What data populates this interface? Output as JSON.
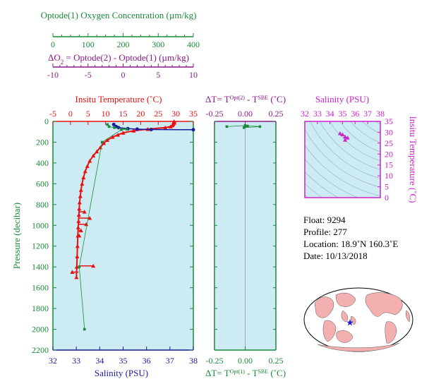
{
  "colors": {
    "oxygen": "#1a8a3a",
    "delta_o2": "#8b1a8b",
    "temperature": "#e81010",
    "salinity": "#1a1aa0",
    "pressure": "#1a8a3a",
    "theta_s": "#cc22cc",
    "plot_bg": "#cdebf3",
    "land": "#f4b0b0",
    "float_marker": "#1a1ad0"
  },
  "axes": {
    "oxygen": {
      "title": "Optode(1) Oxygen Concentration (µm/kg)",
      "range": [
        0,
        400
      ],
      "ticks": [
        "0",
        "100",
        "200",
        "300",
        "400"
      ]
    },
    "delta_o2": {
      "title_prefix": "ΔO",
      "title_sub": "2",
      "title_rest": " = Optode(2) - Optode(1)   (µm/kg)",
      "range": [
        -10,
        10
      ],
      "ticks": [
        "-10",
        "-5",
        "0",
        "5",
        "10"
      ]
    },
    "temperature": {
      "title": "Insitu Temperature (˚C)",
      "range": [
        -5,
        35
      ],
      "ticks": [
        "-5",
        "0",
        "5",
        "10",
        "15",
        "20",
        "25",
        "30",
        "35"
      ]
    },
    "salinity": {
      "title": "Salinity (PSU)",
      "range": [
        32,
        38
      ],
      "ticks": [
        "32",
        "33",
        "34",
        "35",
        "36",
        "37",
        "38"
      ]
    },
    "pressure": {
      "title": "Pressure (decibar)",
      "range": [
        0,
        2200
      ],
      "ticks": [
        "0",
        "200",
        "400",
        "600",
        "800",
        "1000",
        "1200",
        "1400",
        "1600",
        "1800",
        "2000",
        "2200"
      ]
    },
    "delta_t_top": {
      "title_a": "ΔT= T",
      "title_sup_a": "Opt(2)",
      "title_b": " - T",
      "title_sup_b": "SBE",
      "title_c": " (˚C)",
      "range": [
        -0.25,
        0.25
      ],
      "ticks": [
        "-0.25",
        "0.00",
        "0.25"
      ]
    },
    "delta_t_bottom": {
      "title_a": "ΔT= T",
      "title_sup_a": "Opt(1)",
      "title_b": " - T",
      "title_sup_b": "SBE",
      "title_c": " (˚C)",
      "range": [
        -0.25,
        0.25
      ],
      "ticks": [
        "-0.25",
        "0.00",
        "0.25"
      ]
    },
    "ts_salinity": {
      "title": "Salinity (PSU)",
      "range": [
        32,
        38
      ],
      "ticks": [
        "32",
        "33",
        "34",
        "35",
        "36",
        "37",
        "38"
      ]
    },
    "ts_temperature": {
      "title": "Insitu Temperature (˚C)",
      "range": [
        0,
        35
      ],
      "ticks": [
        "0",
        "5",
        "10",
        "15",
        "20",
        "25",
        "30",
        "35"
      ]
    }
  },
  "info": {
    "float": "Float:  9294",
    "profile": "Profile:  277",
    "location": "Location:  18.9˚N  160.3˚E",
    "date": "Date:  10/13/2018"
  },
  "chart_data": [
    {
      "type": "line",
      "name": "Temperature profile",
      "series": [
        {
          "quantity": "temperature",
          "unit": "˚C",
          "points": [
            [
              29.5,
              0
            ],
            [
              29.4,
              10
            ],
            [
              29.3,
              20
            ],
            [
              29.2,
              30
            ],
            [
              29.0,
              40
            ],
            [
              28.5,
              50
            ],
            [
              27.0,
              60
            ],
            [
              22.0,
              75
            ],
            [
              18.0,
              90
            ],
            [
              15.0,
              110
            ],
            [
              13.5,
              130
            ],
            [
              12.0,
              150
            ],
            [
              10.5,
              180
            ],
            [
              9.5,
              210
            ],
            [
              8.5,
              250
            ],
            [
              7.5,
              290
            ],
            [
              6.5,
              330
            ],
            [
              5.5,
              380
            ],
            [
              4.8,
              430
            ],
            [
              4.2,
              480
            ],
            [
              3.7,
              540
            ],
            [
              3.3,
              600
            ],
            [
              3.0,
              660
            ],
            [
              2.8,
              720
            ],
            [
              2.6,
              780
            ],
            [
              2.5,
              840
            ],
            [
              2.4,
              900
            ],
            [
              2.3,
              960
            ],
            [
              2.2,
              1020
            ],
            [
              2.1,
              1100
            ],
            [
              2.0,
              1200
            ],
            [
              1.9,
              1300
            ],
            [
              1.8,
              1400
            ],
            [
              1.7,
              1500
            ]
          ]
        },
        {
          "quantity": "delta_o2_spikes",
          "unit": "µm/kg",
          "points": [
            [
              4.0,
              870
            ],
            [
              5.5,
              930
            ],
            [
              4.5,
              990
            ],
            [
              3.0,
              1050
            ],
            [
              2.5,
              1100
            ],
            [
              6.5,
              1390
            ],
            [
              0.5,
              1450
            ]
          ]
        },
        {
          "quantity": "salinity",
          "unit": "PSU",
          "points": [
            [
              34.6,
              30
            ],
            [
              34.7,
              50
            ],
            [
              34.8,
              60
            ],
            [
              35.2,
              70
            ],
            [
              35.6,
              75
            ],
            [
              36.2,
              78
            ],
            [
              38.0,
              80
            ]
          ]
        },
        {
          "quantity": "oxygen",
          "unit": "µm/kg",
          "points": [
            [
              155,
              30
            ],
            [
              160,
              50
            ],
            [
              175,
              60
            ],
            [
              210,
              75
            ],
            [
              195,
              80
            ],
            [
              140,
              200
            ],
            [
              75,
              1400
            ],
            [
              90,
              2000
            ]
          ]
        }
      ],
      "ylabel": "Pressure (decibar)",
      "ylim": [
        0,
        2200
      ]
    },
    {
      "type": "scatter",
      "name": "Temperature difference",
      "points": [
        [
          -0.15,
          50
        ],
        [
          0.0,
          40
        ],
        [
          0.12,
          50
        ],
        [
          -0.01,
          60
        ],
        [
          0.02,
          45
        ]
      ],
      "xlim": [
        -0.25,
        0.25
      ],
      "ylim": [
        0,
        2200
      ]
    },
    {
      "type": "scatter",
      "name": "T-S diagram",
      "points": [
        [
          34.8,
          29.5
        ],
        [
          35.0,
          29.0
        ],
        [
          35.2,
          28.0
        ],
        [
          35.4,
          27.5
        ],
        [
          35.2,
          26.5
        ]
      ],
      "xlim": [
        32,
        38
      ],
      "ylim": [
        0,
        35
      ]
    }
  ]
}
